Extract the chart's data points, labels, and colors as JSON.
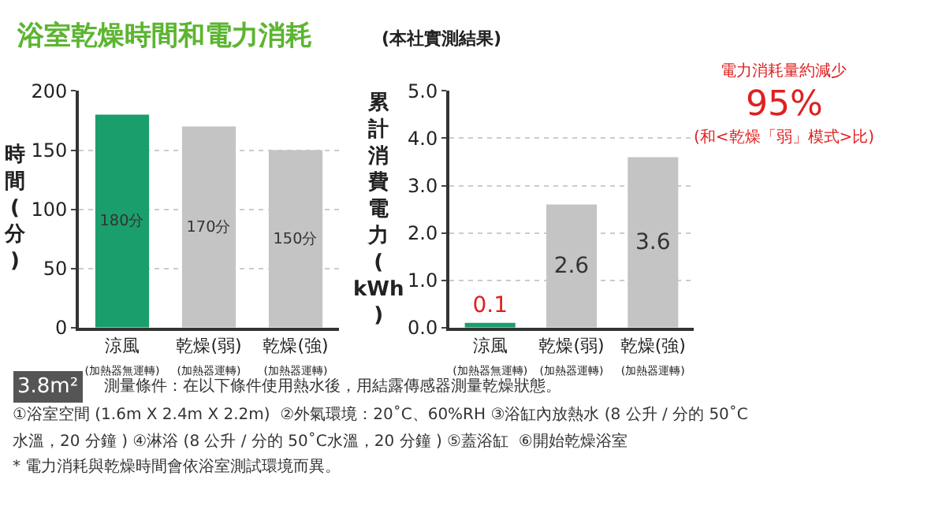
{
  "chart_data": [
    {
      "type": "bar",
      "title": "浴室乾燥時間和電力消耗",
      "ylabel": "時間(分)",
      "categories": [
        "涼風\n(加熱器無運轉)",
        "乾燥(弱)\n(加熱器運轉)",
        "乾燥(強)\n(加熱器運轉)"
      ],
      "values": [
        180,
        170,
        150
      ],
      "colors": [
        "#1a9e6c",
        "#c4c4c4",
        "#c4c4c4"
      ],
      "value_labels": [
        "180分",
        "170分",
        "150分"
      ],
      "ylim": [
        0,
        200
      ],
      "yticks": [
        0,
        50,
        100,
        150,
        200
      ],
      "grid": "y",
      "annotations": [
        "3.8m²",
        "測量條件：在以下條件使用熱水後，用結露傳感器測量乾燥狀態。",
        "①浴室空間 (1.6m X 2.4m X 2.2m)  ②外氣環境：20˚C、60%RH ③浴缸內放熱水 (8 公升 / 分的 50˚C",
        "水溫，20 分鐘 ) ④淋浴 (8 公升 / 分的 50˚C水溫，20 分鐘 ) ⑤蓋浴缸  ⑥開始乾燥浴室",
        "* 電力消耗與乾燥時間會依浴室測試環境而異。"
      ]
    },
    {
      "type": "bar",
      "subtitle": "(本社實測結果)",
      "ylabel": "累計消費電力(kWh)",
      "categories": [
        "涼風\n(加熱器無運轉)",
        "乾燥(弱)\n(加熱器運轉)",
        "乾燥(強)\n(加熱器運轉)"
      ],
      "values": [
        0.1,
        2.6,
        3.6
      ],
      "colors": [
        "#1a9e6c",
        "#c4c4c4",
        "#c4c4c4"
      ],
      "data_labels": true,
      "ylim": [
        0,
        5
      ],
      "yticks": [
        {
          "value": 0,
          "label": "0.0"
        },
        {
          "value": 1,
          "label": "1.0"
        },
        {
          "value": 2,
          "label": "2.0"
        },
        {
          "value": 3,
          "label": "3.0"
        },
        {
          "value": 4,
          "label": "4.0"
        },
        {
          "value": 5,
          "label": "5.0"
        }
      ],
      "grid": "y",
      "annotations": [
        "電力消耗量約減少",
        "95%",
        "(和<乾燥「弱」模式>比)"
      ]
    }
  ]
}
